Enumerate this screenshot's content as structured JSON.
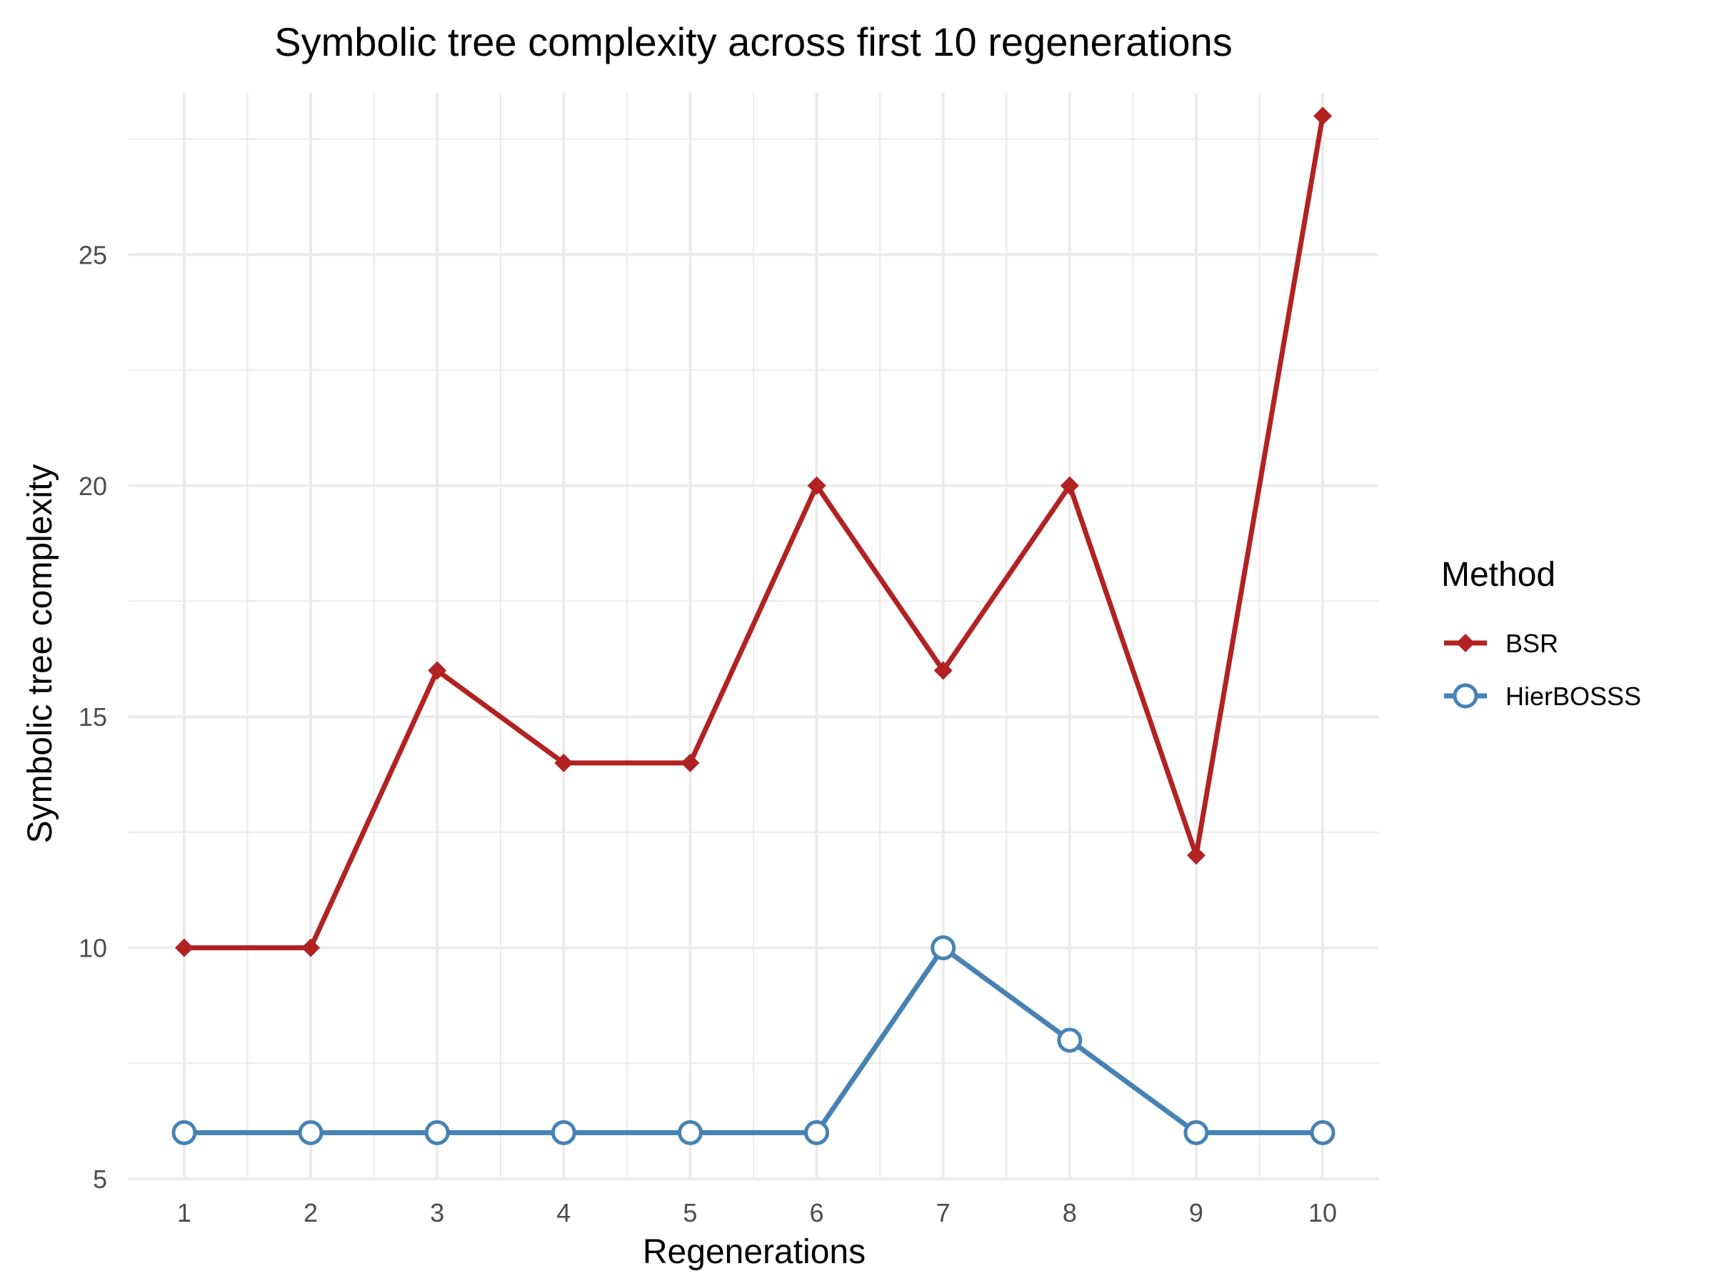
{
  "chart_data": {
    "type": "line",
    "title": "Symbolic tree complexity across first 10 regenerations",
    "xlabel": "Regenerations",
    "ylabel": "Symbolic tree complexity",
    "x": [
      1,
      2,
      3,
      4,
      5,
      6,
      7,
      8,
      9,
      10
    ],
    "xlim": [
      0.56,
      10.44
    ],
    "ylim": [
      5,
      28.5
    ],
    "yticks": [
      5,
      10,
      15,
      20,
      25
    ],
    "grid": true,
    "legend": {
      "title": "Method",
      "placement": "right"
    },
    "series": [
      {
        "name": "BSR",
        "values": [
          10,
          10,
          16,
          14,
          14,
          20,
          16,
          20,
          12,
          28
        ],
        "color": "#b22222",
        "marker": "diamond"
      },
      {
        "name": "HierBOSSS",
        "values": [
          6,
          6,
          6,
          6,
          6,
          6,
          10,
          8,
          6,
          6
        ],
        "color": "#4682b4",
        "marker": "open-circle"
      }
    ]
  }
}
